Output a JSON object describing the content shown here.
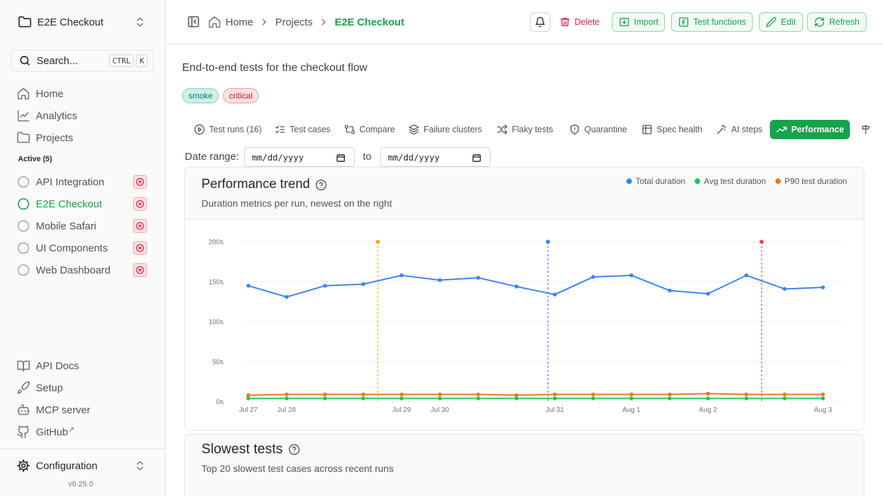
{
  "sidebar": {
    "project_switcher": "E2E Checkout",
    "search": {
      "placeholder": "Search...",
      "keys": [
        "CTRL",
        "K"
      ]
    },
    "nav": [
      {
        "label": "Home",
        "icon": "home-icon"
      },
      {
        "label": "Analytics",
        "icon": "chart-line-icon"
      },
      {
        "label": "Projects",
        "icon": "folder-icon"
      }
    ],
    "active_label": "Active (5)",
    "projects": [
      {
        "label": "API Integration",
        "active": false
      },
      {
        "label": "E2E Checkout",
        "active": true
      },
      {
        "label": "Mobile Safari",
        "active": false
      },
      {
        "label": "UI Components",
        "active": false
      },
      {
        "label": "Web Dashboard",
        "active": false
      }
    ],
    "footer_links": [
      {
        "label": "API Docs",
        "icon": "book-icon"
      },
      {
        "label": "Setup",
        "icon": "rocket-icon"
      },
      {
        "label": "MCP server",
        "icon": "bot-icon"
      },
      {
        "label": "GitHub",
        "icon": "github-icon",
        "external": "↗"
      }
    ],
    "config_label": "Configuration",
    "version": "v0.25.0"
  },
  "header": {
    "breadcrumbs": [
      "Home",
      "Projects",
      "E2E Checkout"
    ],
    "buttons": {
      "delete": "Delete",
      "import": "Import",
      "test_functions": "Test functions",
      "edit": "Edit",
      "refresh": "Refresh"
    }
  },
  "main": {
    "description": "End-to-end tests for the checkout flow",
    "tags": [
      "smoke",
      "critical"
    ],
    "tabs": [
      {
        "label": "Test runs (16)",
        "icon": "play-circle-icon"
      },
      {
        "label": "Test cases",
        "icon": "list-checks-icon"
      },
      {
        "label": "Compare",
        "icon": "git-compare-icon"
      },
      {
        "label": "Failure clusters",
        "icon": "layers-icon"
      },
      {
        "label": "Flaky tests",
        "icon": "shuffle-icon"
      },
      {
        "label": "Quarantine",
        "icon": "shield-icon"
      },
      {
        "label": "Spec health",
        "icon": "table-icon"
      },
      {
        "label": "AI steps",
        "icon": "wand-icon"
      },
      {
        "label": "Performance",
        "icon": "trending-up-icon",
        "active": true
      }
    ],
    "date_range": {
      "label": "Date range:",
      "from": "mm/dd/yyyy",
      "to_label": "to",
      "to": "mm/dd/yyyy"
    }
  },
  "performance": {
    "title": "Performance trend",
    "subtitle": "Duration metrics per run, newest on the right",
    "legend": [
      "Total duration",
      "Avg test duration",
      "P90 test duration"
    ]
  },
  "slowest": {
    "title": "Slowest tests",
    "subtitle": "Top 20 slowest test cases across recent runs"
  },
  "colors": {
    "accent": "#16a34a",
    "danger": "#e11d48",
    "total": "#3b82f6",
    "avg": "#22c55e",
    "p90": "#f97316"
  },
  "chart_data": {
    "type": "line",
    "ylim": [
      0,
      200
    ],
    "yticks": [
      "0s",
      "50s",
      "100s",
      "150s",
      "200s"
    ],
    "date_labels": [
      {
        "run": 0,
        "label": "Jul 27"
      },
      {
        "run": 1,
        "label": "Jul 28"
      },
      {
        "run": 4,
        "label": "Jul 29"
      },
      {
        "run": 5,
        "label": "Jul 30"
      },
      {
        "run": 8,
        "label": "Jul 31"
      },
      {
        "run": 10,
        "label": "Aug 1"
      },
      {
        "run": 12,
        "label": "Aug 2"
      },
      {
        "run": 15,
        "label": "Aug 3"
      }
    ],
    "series": [
      {
        "name": "Total duration",
        "color": "#3b82f6",
        "values": [
          145,
          131,
          145,
          147,
          158,
          152,
          155,
          144,
          134,
          156,
          158,
          139,
          135,
          158,
          141,
          143
        ]
      },
      {
        "name": "Avg test duration",
        "color": "#22c55e",
        "values": [
          4,
          4,
          4,
          4,
          4,
          4,
          4,
          4,
          4,
          4,
          4,
          4,
          4,
          4,
          4,
          4
        ]
      },
      {
        "name": "P90 test duration",
        "color": "#f97316",
        "values": [
          8,
          9,
          9,
          9,
          9,
          9,
          9,
          8,
          9,
          9,
          9,
          9,
          10,
          9,
          9,
          9
        ]
      }
    ],
    "markers": [
      {
        "position": 3.38,
        "color": "#eab308"
      },
      {
        "position": 7.82,
        "color": "#3b82f6"
      },
      {
        "position": 13.4,
        "color": "#ef4444"
      }
    ]
  }
}
